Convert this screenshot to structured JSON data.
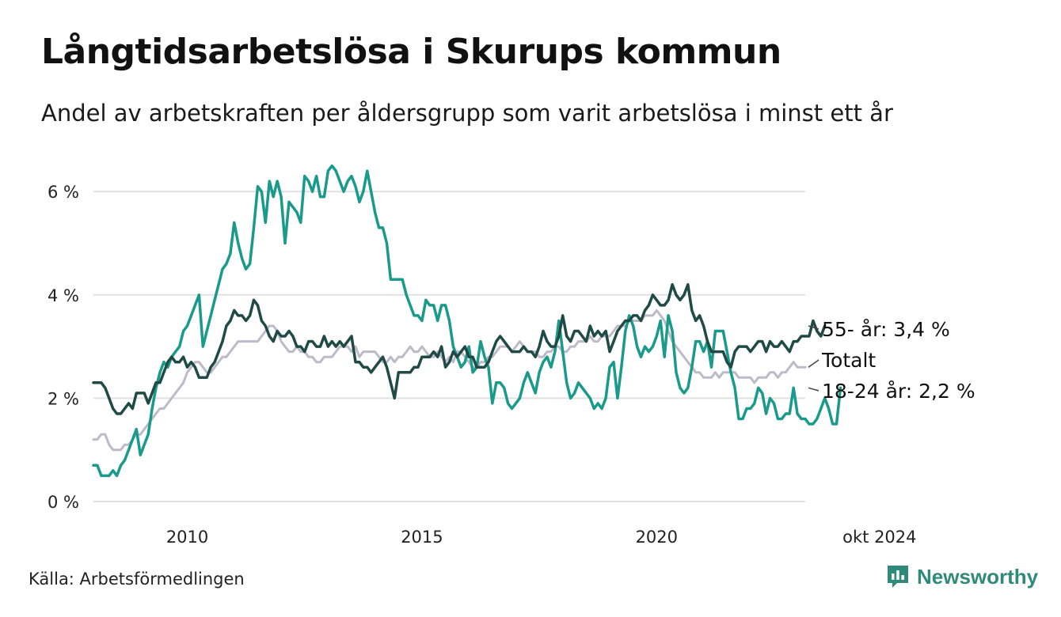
{
  "title": "Långtidsarbetslösa i Skurups kommun",
  "subtitle": "Andel av arbetskraften per åldersgrupp som varit arbetslösa i minst ett år",
  "source": "Källa: Arbetsförmedlingen",
  "brand": {
    "name": "Newsworthy",
    "icon": "newsworthy-logo-icon",
    "color": "#2f8a7a"
  },
  "chart_data": {
    "type": "line",
    "x_start": "2008-01",
    "x_end": "2024-10",
    "x_ticks": [
      {
        "year": 2010,
        "label": "2010"
      },
      {
        "year": 2015,
        "label": "2015"
      },
      {
        "year": 2020,
        "label": "2020"
      },
      {
        "year": 2024.75,
        "label": "okt 2024"
      }
    ],
    "y_ticks": [
      {
        "value": 0,
        "label": "0 %"
      },
      {
        "value": 2,
        "label": "2 %"
      },
      {
        "value": 4,
        "label": "4 %"
      },
      {
        "value": 6,
        "label": "6 %"
      }
    ],
    "ylim": [
      0,
      7
    ],
    "grid": true,
    "series": [
      {
        "name": "Totalt",
        "label": "Totalt",
        "color": "#bdbac9",
        "values": [
          1.2,
          1.2,
          1.3,
          1.3,
          1.1,
          1.0,
          1.0,
          1.0,
          1.1,
          1.1,
          1.2,
          1.3,
          1.3,
          1.4,
          1.5,
          1.6,
          1.7,
          1.8,
          1.8,
          1.9,
          2.0,
          2.1,
          2.2,
          2.3,
          2.5,
          2.6,
          2.7,
          2.7,
          2.6,
          2.5,
          2.5,
          2.6,
          2.7,
          2.8,
          2.8,
          2.9,
          3.0,
          3.1,
          3.1,
          3.1,
          3.1,
          3.1,
          3.1,
          3.2,
          3.3,
          3.4,
          3.4,
          3.3,
          3.1,
          3.0,
          2.9,
          2.9,
          3.0,
          2.9,
          2.9,
          2.8,
          2.8,
          2.7,
          2.7,
          2.8,
          2.8,
          2.8,
          2.9,
          3.0,
          3.0,
          3.0,
          2.9,
          3.0,
          2.8,
          2.9,
          2.9,
          2.9,
          2.9,
          2.8,
          2.7,
          2.7,
          2.8,
          2.7,
          2.8,
          2.8,
          2.9,
          3.0,
          2.9,
          2.9,
          3.0,
          2.9,
          2.8,
          2.8,
          2.9,
          2.8,
          2.7,
          2.8,
          2.7,
          2.9,
          2.9,
          2.8,
          2.7,
          2.6,
          2.6,
          2.7,
          2.7,
          2.8,
          2.8,
          2.9,
          3.0,
          3.0,
          3.0,
          2.9,
          3.0,
          3.1,
          3.0,
          2.9,
          2.9,
          2.9,
          2.8,
          2.8,
          2.9,
          2.9,
          3.0,
          3.0,
          2.9,
          2.9,
          3.0,
          3.0,
          3.1,
          3.1,
          3.1,
          3.2,
          3.1,
          3.1,
          3.2,
          3.2,
          3.2,
          3.3,
          3.4,
          3.4,
          3.4,
          3.5,
          3.5,
          3.5,
          3.5,
          3.6,
          3.6,
          3.6,
          3.7,
          3.6,
          3.5,
          3.3,
          3.1,
          3.0,
          2.9,
          2.8,
          2.7,
          2.6,
          2.5,
          2.5,
          2.4,
          2.4,
          2.4,
          2.5,
          2.4,
          2.5,
          2.5,
          2.5,
          2.5,
          2.4,
          2.4,
          2.4,
          2.4,
          2.3,
          2.4,
          2.4,
          2.4,
          2.5,
          2.5,
          2.4,
          2.5,
          2.5,
          2.6,
          2.7,
          2.6,
          2.6,
          2.6
        ]
      },
      {
        "name": "18-24 år",
        "label": "18-24 år: 2,2 %",
        "color": "#1a9a8a",
        "values": [
          0.7,
          0.7,
          0.5,
          0.5,
          0.5,
          0.6,
          0.5,
          0.7,
          0.8,
          1.0,
          1.2,
          1.4,
          0.9,
          1.1,
          1.3,
          1.8,
          2.2,
          2.5,
          2.7,
          2.6,
          2.8,
          2.9,
          3.0,
          3.3,
          3.4,
          3.6,
          3.8,
          4.0,
          3.0,
          3.3,
          3.6,
          3.9,
          4.2,
          4.5,
          4.6,
          4.8,
          5.4,
          5.0,
          4.7,
          4.5,
          4.6,
          5.3,
          6.1,
          6.0,
          5.4,
          6.2,
          5.9,
          6.2,
          5.9,
          5.0,
          5.8,
          5.7,
          5.6,
          5.4,
          6.3,
          6.2,
          6.0,
          6.3,
          5.9,
          5.9,
          6.4,
          6.5,
          6.4,
          6.2,
          6.0,
          6.2,
          6.3,
          6.1,
          5.8,
          6.0,
          6.4,
          6.0,
          5.6,
          5.3,
          5.3,
          5.0,
          4.3,
          4.3,
          4.3,
          4.3,
          4.0,
          3.8,
          3.6,
          3.6,
          3.5,
          3.9,
          3.8,
          3.8,
          3.5,
          3.8,
          3.8,
          3.5,
          3.0,
          2.8,
          2.6,
          2.7,
          3.0,
          2.5,
          2.6,
          3.1,
          2.8,
          2.6,
          1.9,
          2.3,
          2.3,
          2.2,
          1.9,
          1.8,
          1.9,
          2.0,
          2.3,
          2.5,
          2.3,
          2.1,
          2.5,
          2.7,
          2.8,
          2.6,
          2.9,
          3.5,
          2.9,
          2.3,
          2.0,
          2.1,
          2.3,
          2.2,
          2.1,
          2.0,
          1.8,
          1.9,
          1.8,
          2.0,
          2.6,
          2.7,
          2.0,
          2.6,
          3.3,
          3.6,
          3.4,
          3.0,
          2.8,
          3.0,
          2.9,
          3.0,
          3.2,
          3.5,
          2.8,
          3.6,
          3.3,
          2.5,
          2.2,
          2.1,
          2.2,
          2.6,
          3.1,
          3.1,
          2.9,
          3.1,
          2.6,
          3.3,
          3.3,
          3.3,
          2.9,
          2.5,
          2.2,
          1.6,
          1.6,
          1.8,
          1.8,
          1.9,
          2.2,
          2.1,
          1.7,
          2.0,
          1.9,
          1.6,
          1.6,
          1.7,
          1.7,
          2.2,
          1.7,
          1.6,
          1.6,
          1.5,
          1.5,
          1.6,
          1.8,
          2.0,
          1.8,
          1.5,
          1.5,
          2.2
        ]
      },
      {
        "name": "55- år",
        "label": "55- år: 3,4 %",
        "color": "#1f4a45",
        "values": [
          2.3,
          2.3,
          2.3,
          2.2,
          2.0,
          1.8,
          1.7,
          1.7,
          1.8,
          1.9,
          1.8,
          2.1,
          2.1,
          2.1,
          1.9,
          2.1,
          2.3,
          2.3,
          2.5,
          2.7,
          2.8,
          2.7,
          2.7,
          2.8,
          2.6,
          2.7,
          2.6,
          2.4,
          2.4,
          2.4,
          2.6,
          2.7,
          2.9,
          3.1,
          3.4,
          3.5,
          3.7,
          3.6,
          3.6,
          3.5,
          3.6,
          3.9,
          3.8,
          3.5,
          3.4,
          3.2,
          3.1,
          3.3,
          3.2,
          3.2,
          3.3,
          3.2,
          3.0,
          3.0,
          2.9,
          3.1,
          3.1,
          3.0,
          3.0,
          3.2,
          3.0,
          3.1,
          3.0,
          3.1,
          3.0,
          3.1,
          3.2,
          2.7,
          2.7,
          2.6,
          2.6,
          2.5,
          2.6,
          2.7,
          2.8,
          2.6,
          2.3,
          2.0,
          2.5,
          2.5,
          2.5,
          2.5,
          2.6,
          2.6,
          2.8,
          2.8,
          2.8,
          2.9,
          2.8,
          3.0,
          2.6,
          2.7,
          2.9,
          2.8,
          2.9,
          3.0,
          2.8,
          2.8,
          2.6,
          2.6,
          2.6,
          2.7,
          2.9,
          3.1,
          3.2,
          3.1,
          3.0,
          2.9,
          2.9,
          2.9,
          3.0,
          2.9,
          2.9,
          2.8,
          3.0,
          3.3,
          3.1,
          3.0,
          3.0,
          3.2,
          3.6,
          3.2,
          3.1,
          3.3,
          3.3,
          3.2,
          3.1,
          3.4,
          3.2,
          3.3,
          3.2,
          3.3,
          2.9,
          3.1,
          3.3,
          3.4,
          3.5,
          3.5,
          3.6,
          3.6,
          3.5,
          3.7,
          3.8,
          4.0,
          3.9,
          3.8,
          3.8,
          3.9,
          4.2,
          4.0,
          3.9,
          4.0,
          4.2,
          3.7,
          3.5,
          3.6,
          3.4,
          3.1,
          2.9,
          2.9,
          2.9,
          2.9,
          2.7,
          2.6,
          2.9,
          3.0,
          3.0,
          3.0,
          2.9,
          3.0,
          3.1,
          3.1,
          2.9,
          3.1,
          3.0,
          3.0,
          3.1,
          3.0,
          2.9,
          3.1,
          3.1,
          3.2,
          3.2,
          3.2,
          3.5,
          3.3,
          3.2,
          3.4
        ]
      }
    ]
  }
}
